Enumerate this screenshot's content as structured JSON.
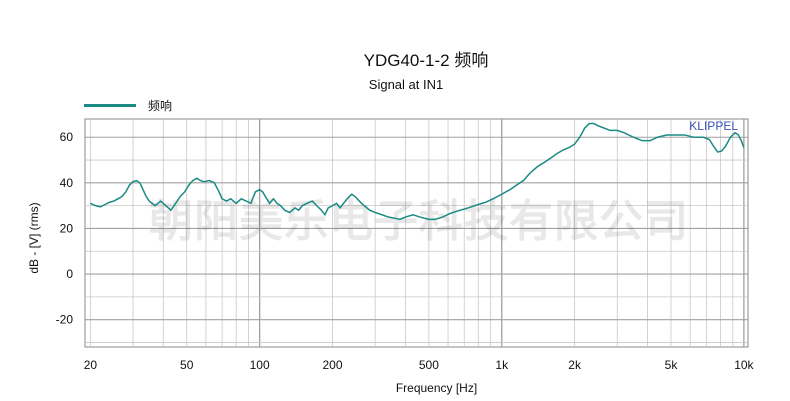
{
  "watermark": "朝阳美乐电子科技有限公司",
  "brand": "KLIPPEL",
  "chart_data": {
    "type": "line",
    "title": "YDG40-1-2 频响",
    "subtitle": "Signal at IN1",
    "xlabel": "Frequency [Hz]",
    "ylabel": "dB - [V] (rms)",
    "xscale": "log",
    "xlim": [
      19,
      10400
    ],
    "ylim": [
      -32,
      68
    ],
    "x_ticks": [
      20,
      50,
      100,
      200,
      500,
      1000,
      2000,
      5000,
      10000
    ],
    "x_tick_labels": [
      "20",
      "50",
      "100",
      "200",
      "500",
      "1k",
      "2k",
      "5k",
      "10k"
    ],
    "y_ticks": [
      -20,
      0,
      20,
      40,
      60
    ],
    "y_tick_labels": [
      "-20",
      "0",
      "20",
      "40",
      "60"
    ],
    "grid": true,
    "legend_position": "top-left",
    "colors": {
      "series": "#1a8a82",
      "grid": "#c8c8c8",
      "major_grid": "#a0a0a0",
      "plot_bg": "#ffffff",
      "border": "#888888"
    },
    "series": [
      {
        "name": "频响",
        "points": [
          [
            20,
            31
          ],
          [
            21,
            30
          ],
          [
            22,
            29.5
          ],
          [
            23,
            30.5
          ],
          [
            24,
            31.5
          ],
          [
            25,
            32
          ],
          [
            26,
            33
          ],
          [
            27,
            34
          ],
          [
            28,
            36
          ],
          [
            29,
            39
          ],
          [
            30,
            40.5
          ],
          [
            31,
            41
          ],
          [
            32,
            40
          ],
          [
            33,
            37
          ],
          [
            34,
            34
          ],
          [
            35,
            32
          ],
          [
            37,
            30
          ],
          [
            39,
            32
          ],
          [
            41,
            30
          ],
          [
            43,
            28
          ],
          [
            45,
            31
          ],
          [
            47,
            34
          ],
          [
            49,
            36
          ],
          [
            51,
            39
          ],
          [
            53,
            41
          ],
          [
            55,
            42
          ],
          [
            57,
            41
          ],
          [
            59,
            40.5
          ],
          [
            62,
            41
          ],
          [
            65,
            40
          ],
          [
            68,
            36
          ],
          [
            70,
            33
          ],
          [
            73,
            32
          ],
          [
            76,
            33
          ],
          [
            80,
            31
          ],
          [
            84,
            33
          ],
          [
            88,
            32
          ],
          [
            92,
            31
          ],
          [
            96,
            36
          ],
          [
            100,
            37
          ],
          [
            103,
            36
          ],
          [
            107,
            33
          ],
          [
            110,
            31
          ],
          [
            114,
            33
          ],
          [
            118,
            31
          ],
          [
            122,
            30
          ],
          [
            127,
            28
          ],
          [
            133,
            27
          ],
          [
            140,
            29
          ],
          [
            145,
            28
          ],
          [
            150,
            30
          ],
          [
            157,
            31
          ],
          [
            165,
            32
          ],
          [
            172,
            30
          ],
          [
            180,
            28
          ],
          [
            186,
            26
          ],
          [
            192,
            29
          ],
          [
            200,
            30
          ],
          [
            208,
            31
          ],
          [
            215,
            29
          ],
          [
            222,
            31
          ],
          [
            230,
            33
          ],
          [
            240,
            35
          ],
          [
            248,
            34
          ],
          [
            258,
            32
          ],
          [
            270,
            30
          ],
          [
            285,
            28
          ],
          [
            300,
            27
          ],
          [
            320,
            26
          ],
          [
            340,
            25
          ],
          [
            360,
            24.5
          ],
          [
            380,
            24
          ],
          [
            400,
            25
          ],
          [
            430,
            26
          ],
          [
            460,
            25
          ],
          [
            500,
            24
          ],
          [
            530,
            24
          ],
          [
            570,
            25
          ],
          [
            610,
            26.5
          ],
          [
            650,
            27.5
          ],
          [
            700,
            28.5
          ],
          [
            750,
            29.5
          ],
          [
            800,
            30.5
          ],
          [
            860,
            31.5
          ],
          [
            920,
            33
          ],
          [
            1000,
            35
          ],
          [
            1080,
            37
          ],
          [
            1150,
            39
          ],
          [
            1230,
            41
          ],
          [
            1300,
            44
          ],
          [
            1400,
            47
          ],
          [
            1500,
            49
          ],
          [
            1600,
            51
          ],
          [
            1700,
            53
          ],
          [
            1800,
            54.5
          ],
          [
            1900,
            55.5
          ],
          [
            2000,
            57
          ],
          [
            2100,
            60
          ],
          [
            2200,
            64
          ],
          [
            2300,
            66
          ],
          [
            2400,
            66
          ],
          [
            2500,
            65
          ],
          [
            2650,
            64
          ],
          [
            2800,
            63
          ],
          [
            3000,
            63
          ],
          [
            3200,
            62
          ],
          [
            3500,
            60
          ],
          [
            3800,
            58.5
          ],
          [
            4100,
            58.5
          ],
          [
            4400,
            60
          ],
          [
            4800,
            61
          ],
          [
            5200,
            61
          ],
          [
            5700,
            61
          ],
          [
            6200,
            60
          ],
          [
            6800,
            60
          ],
          [
            7200,
            59
          ],
          [
            7500,
            56
          ],
          [
            7800,
            53.5
          ],
          [
            8100,
            54
          ],
          [
            8400,
            56
          ],
          [
            8800,
            60
          ],
          [
            9200,
            62
          ],
          [
            9500,
            61
          ],
          [
            9800,
            58
          ],
          [
            10000,
            55.5
          ]
        ]
      }
    ]
  }
}
